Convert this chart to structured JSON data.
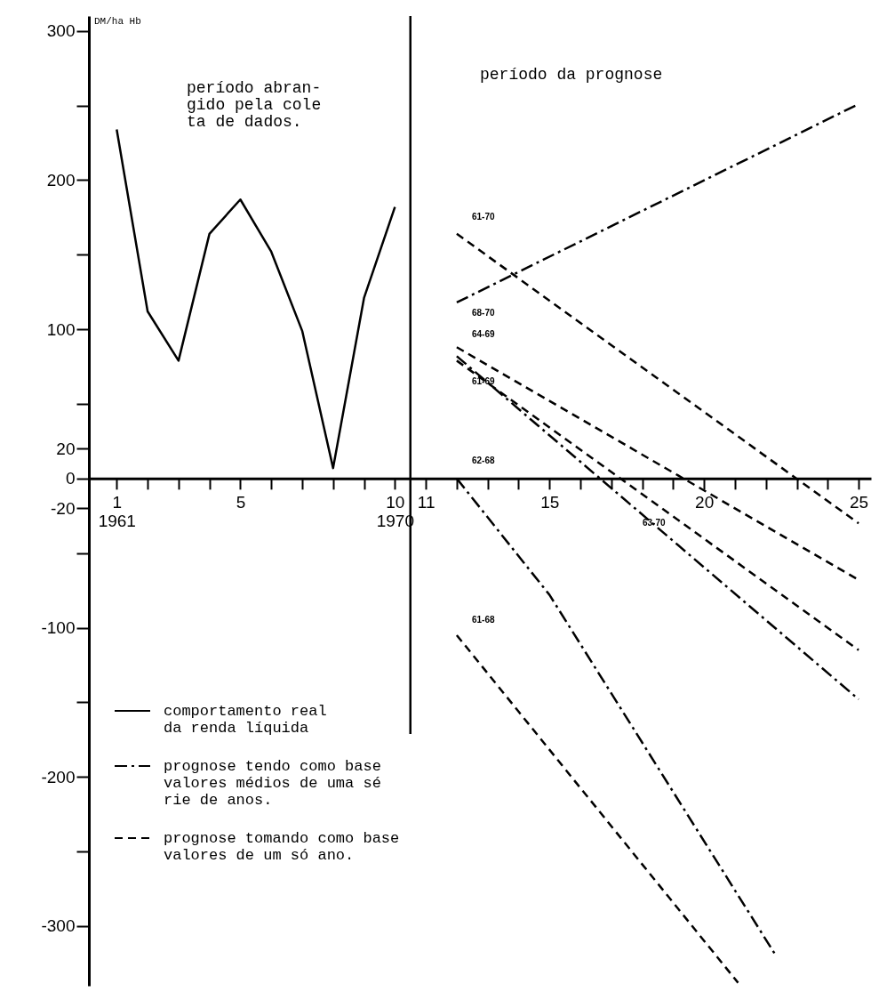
{
  "chart_data": {
    "type": "line",
    "ylabel": "DM/ha Hb",
    "xlim": [
      0.1,
      25.4
    ],
    "ylim": [
      -340,
      310
    ],
    "xticks": [
      {
        "value": 1,
        "label": "1\n1961"
      },
      {
        "value": 2,
        "label": null
      },
      {
        "value": 3,
        "label": null
      },
      {
        "value": 4,
        "label": null
      },
      5,
      {
        "value": 6,
        "label": null
      },
      {
        "value": 7,
        "label": null
      },
      {
        "value": 8,
        "label": null
      },
      {
        "value": 9,
        "label": null
      },
      {
        "value": 10,
        "label": "10\n1970"
      },
      11,
      {
        "value": 12,
        "label": null
      },
      {
        "value": 13,
        "label": null
      },
      {
        "value": 14,
        "label": null
      },
      15,
      {
        "value": 16,
        "label": null
      },
      {
        "value": 17,
        "label": null
      },
      {
        "value": 18,
        "label": null
      },
      {
        "value": 19,
        "label": null
      },
      20,
      {
        "value": 21,
        "label": null
      },
      {
        "value": 22,
        "label": null
      },
      {
        "value": 23,
        "label": null
      },
      {
        "value": 24,
        "label": null
      },
      25
    ],
    "yticks": [
      300,
      {
        "value": 250,
        "label": null
      },
      200,
      {
        "value": 150,
        "label": null
      },
      100,
      {
        "value": 50,
        "label": null
      },
      20,
      0,
      -20,
      {
        "value": -50,
        "label": null
      },
      -100,
      {
        "value": -150,
        "label": null
      },
      -200,
      {
        "value": -250,
        "label": null
      },
      -300
    ],
    "series": [
      {
        "name": "comportamento real\nda renda líquida",
        "color": "#000000",
        "line_style": "solid",
        "x": [
          1,
          2,
          3,
          4,
          5,
          6,
          7,
          8,
          9,
          10
        ],
        "values": [
          234,
          112,
          79,
          164,
          187,
          152,
          99,
          7,
          121,
          182
        ]
      },
      {
        "name": "prognose tendo como base\nvalores médios de uma sé\nrie de anos.",
        "color": "#000000",
        "line_style": "dashdot",
        "x": [
          12,
          25
        ],
        "values": [
          118,
          251
        ]
      },
      {
        "name": "prognose tomando como base\nvalores de um só ano.",
        "color": "#000000",
        "line_style": "dashed",
        "x": [
          12,
          25
        ],
        "values": [
          164,
          -30
        ]
      },
      {
        "color": "#000000",
        "line_style": "dashed",
        "x": [
          12,
          25
        ],
        "values": [
          88,
          -68
        ]
      },
      {
        "color": "#000000",
        "line_style": "dashed",
        "x": [
          12,
          25
        ],
        "values": [
          79,
          -115
        ]
      },
      {
        "color": "#000000",
        "line_style": "dashdot",
        "x": [
          12,
          25
        ],
        "values": [
          82,
          -148
        ]
      },
      {
        "color": "#000000",
        "line_style": "dashdot",
        "x": [
          12,
          15,
          22.3
        ],
        "values": [
          0,
          -78,
          -319
        ]
      },
      {
        "color": "#000000",
        "line_style": "dashed",
        "x": [
          12,
          21.1
        ],
        "values": [
          -105,
          -338
        ]
      }
    ],
    "ref_lines": [
      {
        "axis": "x",
        "value": 10.5,
        "color": "#000000"
      }
    ],
    "legend": "bottom left",
    "annotations": [
      "período abran-\ngido pela cole\nta de dados.",
      "período da prognose",
      "61-70",
      "68-70",
      "64-69",
      "61-69",
      "62-68",
      "63-70",
      "61-68"
    ]
  }
}
